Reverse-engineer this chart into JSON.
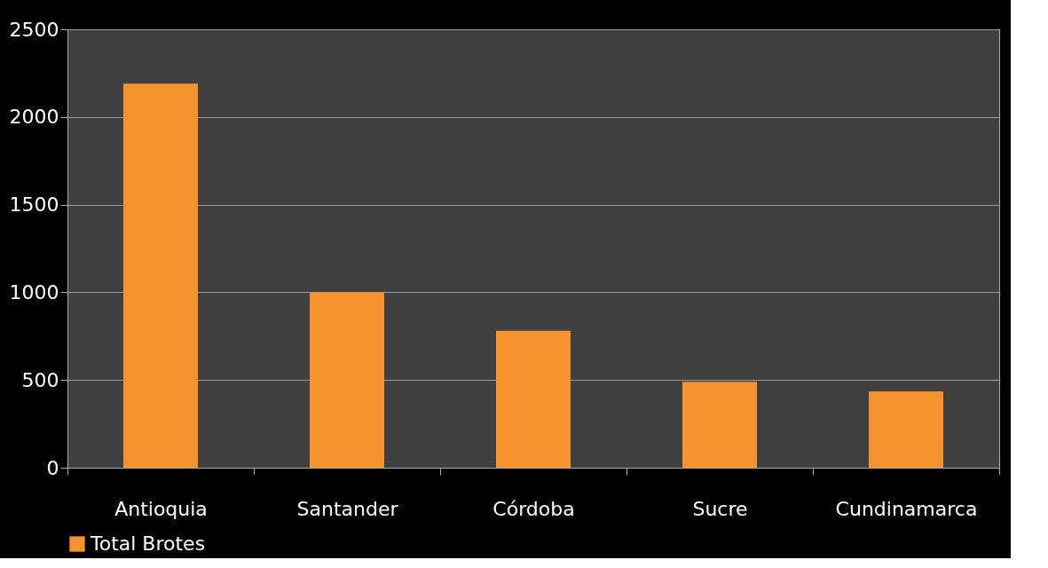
{
  "chart_data": {
    "type": "bar",
    "categories": [
      "Antioquia",
      "Santander",
      "Córdoba",
      "Sucre",
      "Cundinamarca"
    ],
    "series": [
      {
        "name": "Total Brotes",
        "color": "#f7932e",
        "values": [
          2190,
          1000,
          780,
          490,
          435
        ]
      }
    ],
    "ylim": [
      0,
      2500
    ],
    "yticks": [
      0,
      500,
      1000,
      1500,
      2000,
      2500
    ],
    "grid": "y",
    "legend": "bottom"
  }
}
